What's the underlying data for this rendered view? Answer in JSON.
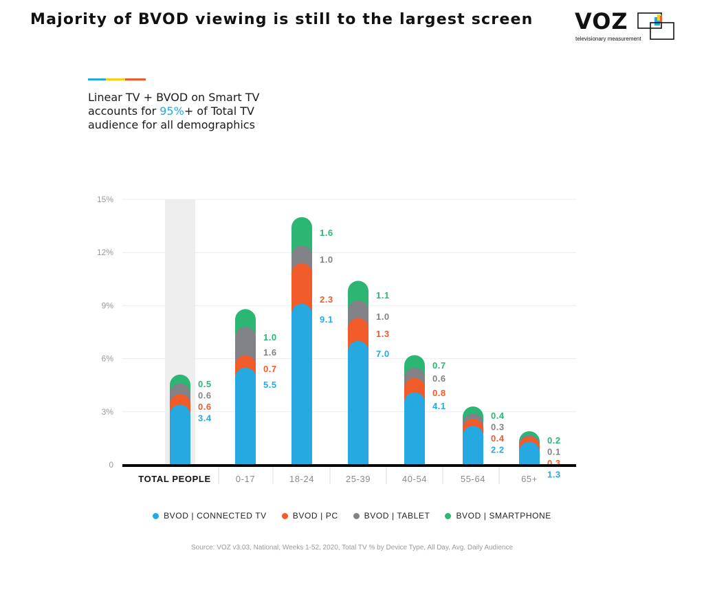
{
  "header": {
    "title": "Majority of BVOD viewing is still to the largest screen"
  },
  "logo": {
    "word": "VOZ",
    "tagline": "televisionary measurement"
  },
  "callout": {
    "line1": "Linear TV + BVOD on Smart TV",
    "line2_pre": "accounts for ",
    "line2_highlight": "95%",
    "line2_post": "+ of Total TV",
    "line3": "audience for all demographics"
  },
  "colors": {
    "connected_tv": "#26a9e0",
    "pc": "#f15a29",
    "tablet": "#808285",
    "smartphone": "#2bb673",
    "highlight_band": "#eeeeef",
    "accent_blue": "#26a9e0",
    "accent_yellow": "#f7d117",
    "accent_orange": "#f15a29"
  },
  "chart_data": {
    "type": "bar",
    "stacked": true,
    "categories": [
      "TOTAL PEOPLE",
      "0-17",
      "18-24",
      "25-39",
      "40-54",
      "55-64",
      "65+"
    ],
    "highlighted_category": "TOTAL PEOPLE",
    "series": [
      {
        "name": "BVOD | CONNECTED TV",
        "values": [
          3.4,
          5.5,
          9.1,
          7.0,
          4.1,
          2.2,
          1.3
        ]
      },
      {
        "name": "BVOD | PC",
        "values": [
          0.6,
          0.7,
          2.3,
          1.3,
          0.8,
          0.4,
          0.3
        ]
      },
      {
        "name": "BVOD | TABLET",
        "values": [
          0.6,
          1.6,
          1.0,
          1.0,
          0.6,
          0.3,
          0.1
        ]
      },
      {
        "name": "BVOD | SMARTPHONE",
        "values": [
          0.5,
          1.0,
          1.6,
          1.1,
          0.7,
          0.4,
          0.2
        ]
      }
    ],
    "y_ticks": [
      "0",
      "3%",
      "6%",
      "9%",
      "12%",
      "15%"
    ],
    "ylim": [
      0,
      15
    ],
    "grid": true,
    "legend_position": "bottom",
    "xlabel": "",
    "ylabel": ""
  },
  "source": "Source: VOZ v3.03, National, Weeks 1-52, 2020, Total TV % by Device Type, All Day, Avg. Daily Audience"
}
